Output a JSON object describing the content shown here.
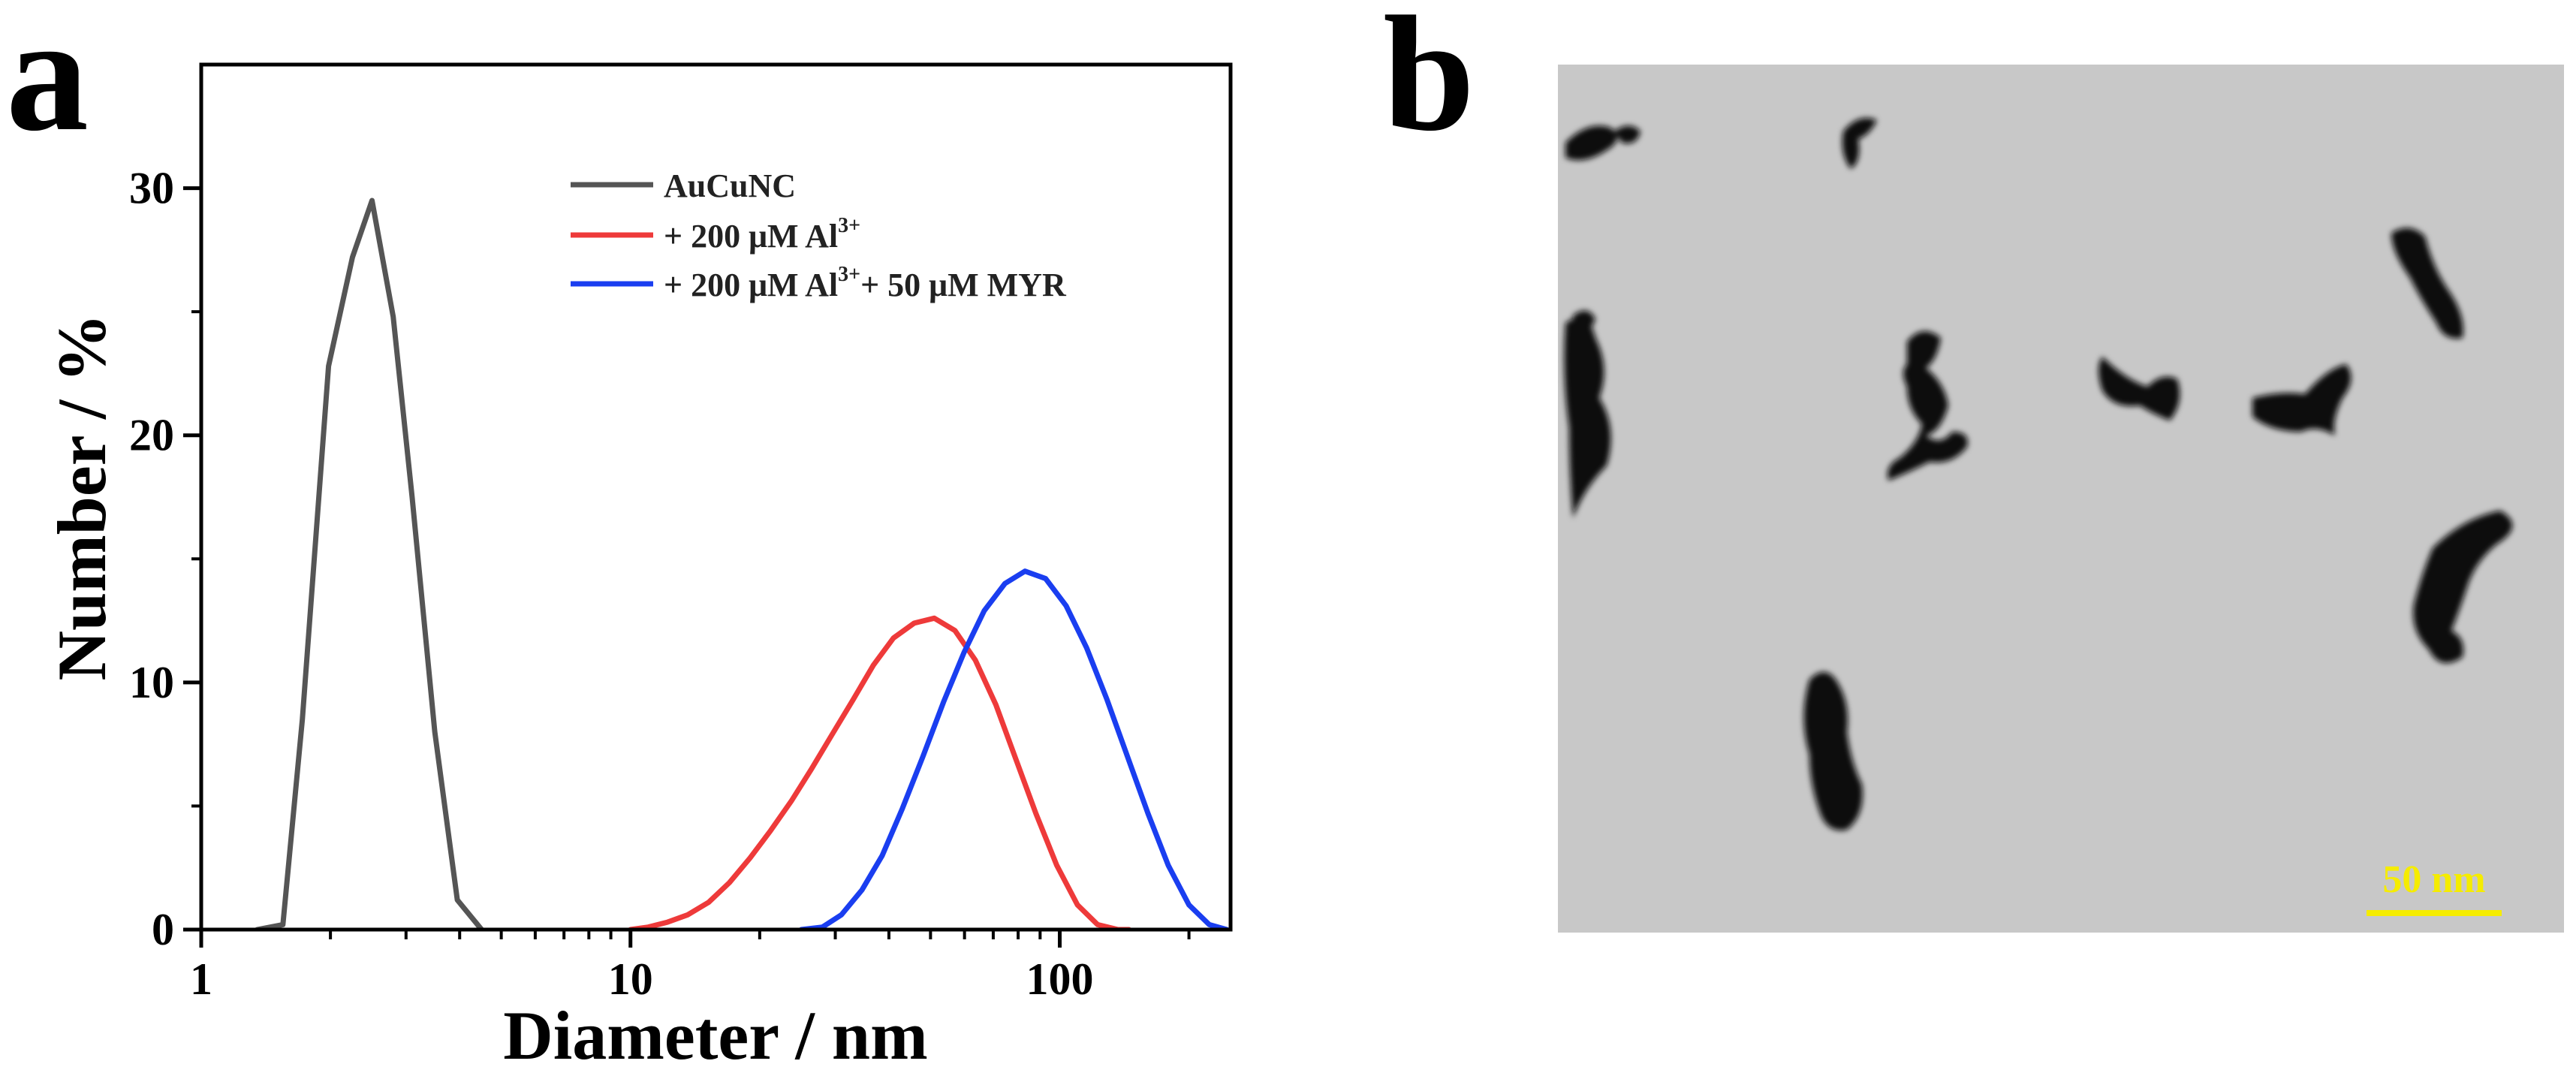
{
  "panel_a_label": "a",
  "panel_b_label": "b",
  "colors": {
    "AuCuNC": "#555555",
    "Al": "#ee3a3a",
    "AlMyr": "#1a3ef0",
    "scalebar": "#f5ec00"
  },
  "chart_data": {
    "type": "line",
    "title": "",
    "xlabel": "Diameter / nm",
    "ylabel": "Number / %",
    "xscale": "log",
    "xlim": [
      1,
      250
    ],
    "ylim": [
      0,
      35
    ],
    "xticks": [
      1,
      10,
      100
    ],
    "yticks": [
      0,
      10,
      20,
      30
    ],
    "grid": false,
    "legend_position": "top-right",
    "series": [
      {
        "key": "AuCuNC",
        "name": "AuCuNC",
        "x": [
          1.35,
          1.55,
          1.72,
          1.98,
          2.25,
          2.5,
          2.8,
          3.1,
          3.5,
          3.95,
          4.5
        ],
        "y": [
          0,
          0.2,
          8.5,
          22.8,
          27.2,
          29.5,
          24.8,
          17.5,
          8.0,
          1.2,
          0
        ]
      },
      {
        "key": "Al",
        "name": "+ 200 μM Al",
        "sup": "3+",
        "x": [
          10,
          11,
          12.2,
          13.6,
          15.2,
          17,
          19,
          21.2,
          23.7,
          26.4,
          29.5,
          33,
          36.8,
          41,
          45.8,
          51,
          57,
          63.6,
          71,
          79,
          88,
          98.4,
          110,
          122.5,
          136.7,
          145
        ],
        "y": [
          0,
          0.1,
          0.3,
          0.6,
          1.1,
          1.9,
          2.9,
          4.0,
          5.2,
          6.5,
          7.9,
          9.3,
          10.7,
          11.8,
          12.4,
          12.6,
          12.1,
          10.9,
          9.1,
          6.9,
          4.7,
          2.6,
          1.0,
          0.2,
          0,
          0
        ]
      },
      {
        "key": "AlMyr",
        "name": "+ 200 μM Al",
        "sup": "3+",
        "name_suffix": "+ 50 μM MYR",
        "x": [
          25,
          28,
          31,
          34.6,
          38.6,
          43,
          48,
          53.6,
          59.8,
          66.7,
          74.5,
          83,
          92.7,
          103.5,
          115.5,
          128.9,
          143.8,
          160.5,
          179,
          200,
          223,
          245
        ],
        "y": [
          0,
          0.1,
          0.6,
          1.6,
          3.0,
          4.9,
          7.0,
          9.2,
          11.2,
          12.9,
          14.0,
          14.5,
          14.2,
          13.1,
          11.4,
          9.3,
          7.0,
          4.7,
          2.6,
          1.0,
          0.2,
          0
        ]
      }
    ]
  },
  "tem_image": {
    "scale_bar_label": "50 nm",
    "scale_bar_nm": 50
  }
}
